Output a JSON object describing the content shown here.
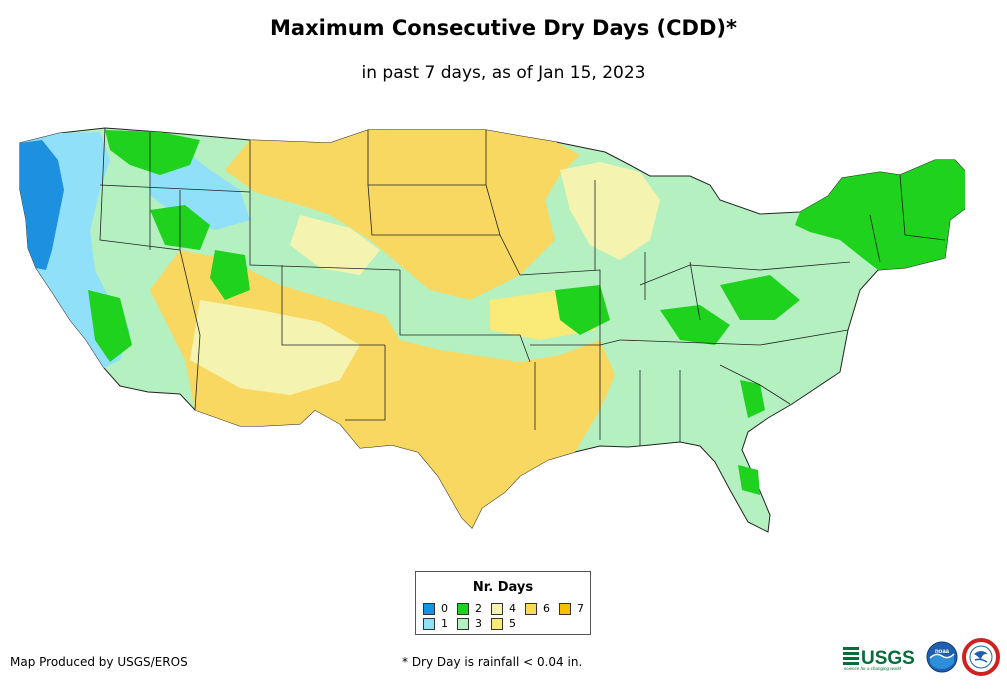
{
  "title": "Maximum Consecutive Dry Days (CDD)*",
  "subtitle": "in past 7 days, as of Jan 15, 2023",
  "legend": {
    "title": "Nr. Days",
    "items": [
      {
        "label": "0",
        "color": "#1e90e0"
      },
      {
        "label": "1",
        "color": "#8fe0f8"
      },
      {
        "label": "2",
        "color": "#1ed21e"
      },
      {
        "label": "3",
        "color": "#b4f0c0"
      },
      {
        "label": "4",
        "color": "#f4f4b0"
      },
      {
        "label": "5",
        "color": "#faea78"
      },
      {
        "label": "6",
        "color": "#f8d860"
      },
      {
        "label": "7",
        "color": "#f6c000"
      }
    ]
  },
  "credit": "Map Produced by USGS/EROS",
  "footnote": "* Dry Day is rainfall < 0.04 in.",
  "logos": {
    "usgs": "USGS",
    "usgs_tagline": "science for a changing world",
    "noaa": "noaa"
  }
}
